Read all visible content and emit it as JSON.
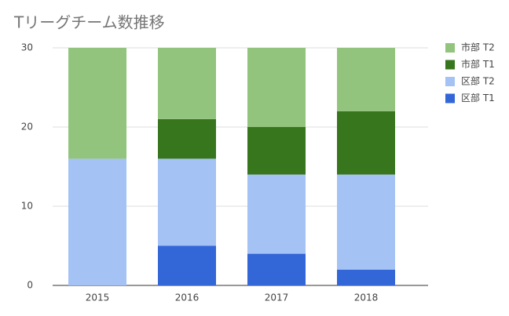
{
  "chart_data": {
    "type": "stacked_bar",
    "title": "Tリーグチーム数推移",
    "categories": [
      "2015",
      "2016",
      "2017",
      "2018"
    ],
    "series": [
      {
        "name": "区部 T1",
        "color": "#3366d6",
        "values": [
          0,
          5,
          4,
          2
        ]
      },
      {
        "name": "区部 T2",
        "color": "#a4c2f4",
        "values": [
          16,
          11,
          10,
          12
        ]
      },
      {
        "name": "市部 T1",
        "color": "#38761d",
        "values": [
          0,
          5,
          6,
          8
        ]
      },
      {
        "name": "市部 T2",
        "color": "#93c47d",
        "values": [
          14,
          9,
          10,
          8
        ]
      }
    ],
    "ylim": [
      0,
      30
    ],
    "yticks": [
      0,
      10,
      20,
      30
    ],
    "grid": true,
    "legend": "right"
  }
}
